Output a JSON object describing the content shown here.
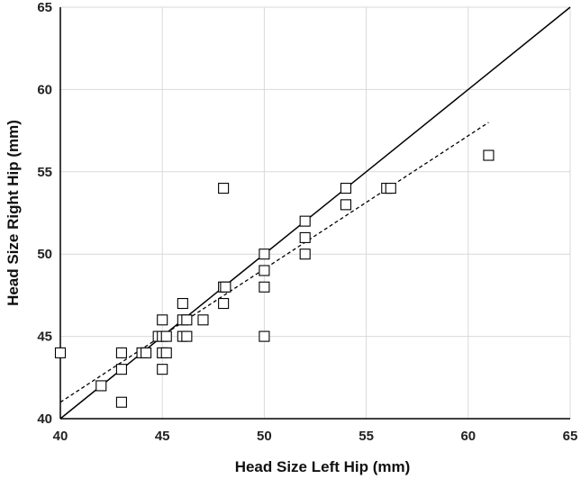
{
  "chart_data": {
    "type": "scatter",
    "title": "",
    "xlabel": "Head Size Left Hip (mm)",
    "ylabel": "Head Size Right Hip (mm)",
    "xlim": [
      40,
      65
    ],
    "ylim": [
      40,
      65
    ],
    "x_ticks": [
      40,
      45,
      50,
      55,
      60,
      65
    ],
    "y_ticks": [
      40,
      45,
      50,
      55,
      60,
      65
    ],
    "x_tick_labels": [
      "40",
      "45",
      "50",
      "55",
      "60",
      "65"
    ],
    "y_tick_labels": [
      "40",
      "45",
      "50",
      "55",
      "60",
      "65"
    ],
    "grid": true,
    "marker": "hollow-square",
    "series": [
      {
        "points": [
          [
            40,
            44
          ],
          [
            42,
            42
          ],
          [
            43,
            44
          ],
          [
            43,
            43
          ],
          [
            43,
            41
          ],
          [
            44,
            44
          ],
          [
            44.2,
            44
          ],
          [
            44.8,
            45
          ],
          [
            45,
            46
          ],
          [
            45,
            45
          ],
          [
            45,
            44
          ],
          [
            45.2,
            44
          ],
          [
            45,
            43
          ],
          [
            45.2,
            45
          ],
          [
            46,
            47
          ],
          [
            46,
            46
          ],
          [
            46,
            45
          ],
          [
            46.2,
            46
          ],
          [
            46.2,
            45
          ],
          [
            47,
            46
          ],
          [
            48,
            54
          ],
          [
            48,
            48
          ],
          [
            48.1,
            48
          ],
          [
            48,
            47
          ],
          [
            50,
            50
          ],
          [
            50,
            49
          ],
          [
            50,
            48
          ],
          [
            50,
            45
          ],
          [
            52,
            52
          ],
          [
            52,
            51
          ],
          [
            52,
            50
          ],
          [
            54,
            54
          ],
          [
            54,
            53
          ],
          [
            56,
            54
          ],
          [
            56.2,
            54
          ],
          [
            61,
            56
          ]
        ]
      }
    ],
    "lines": [
      {
        "style": "solid",
        "from": [
          40,
          40
        ],
        "to": [
          65,
          65
        ]
      },
      {
        "style": "dashed",
        "from": [
          40,
          41
        ],
        "to": [
          61,
          58
        ]
      }
    ]
  }
}
